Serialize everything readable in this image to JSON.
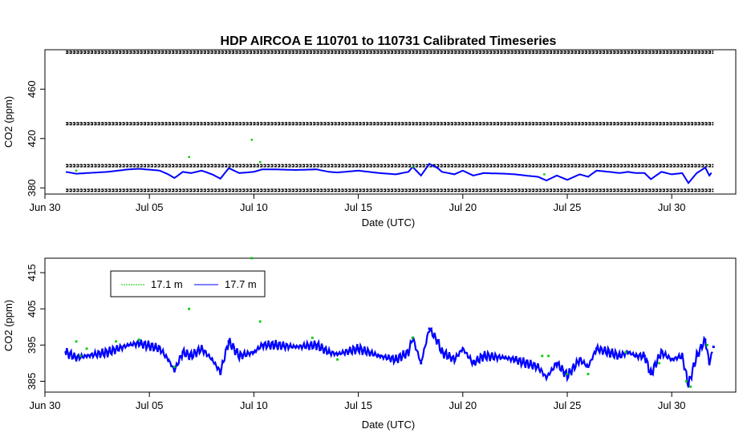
{
  "chart_data": [
    {
      "type": "scatter",
      "title": "HDP   AIRCOA  E    110701  to  110731   Calibrated Timeseries",
      "xlabel": "Date (UTC)",
      "ylabel": "CO2 (ppm)",
      "x_ticks": [
        "Jun 30",
        "Jul 05",
        "Jul 10",
        "Jul 15",
        "Jul 20",
        "Jul 25",
        "Jul 30"
      ],
      "y_ticks": [
        "380",
        "420",
        "460"
      ],
      "ylim": [
        375,
        492
      ],
      "reference_lines": [
        {
          "name": "",
          "value": 490,
          "style": "circles"
        },
        {
          "name": "",
          "value": 432,
          "style": "circles"
        },
        {
          "name": "",
          "value": 398,
          "style": "circles"
        },
        {
          "name": "",
          "value": 378,
          "style": "circles"
        }
      ],
      "series": [
        {
          "name": "17.1 m",
          "color": "#00cc00",
          "points": [
            [
              1.5,
              394
            ],
            [
              6.9,
              405
            ],
            [
              9.9,
              419
            ],
            [
              10.3,
              401
            ],
            [
              17.6,
              397
            ],
            [
              23.9,
              391
            ]
          ]
        },
        {
          "name": "17.7 m",
          "color": "#0000ff",
          "approx_range": [
            386,
            400
          ]
        }
      ]
    },
    {
      "type": "line",
      "title": "",
      "xlabel": "Date (UTC)",
      "ylabel": "CO2 (ppm)",
      "x_ticks": [
        "Jun 30",
        "Jul 05",
        "Jul 10",
        "Jul 15",
        "Jul 20",
        "Jul 25",
        "Jul 30"
      ],
      "y_ticks": [
        "385",
        "395",
        "405",
        "415"
      ],
      "ylim": [
        382,
        419
      ],
      "legend": {
        "placement": "top-left",
        "entries": [
          "17.1 m",
          "17.7 m"
        ]
      },
      "series": [
        {
          "name": "17.1 m",
          "color": "#00cc00",
          "points": [
            [
              1.5,
              396
            ],
            [
              1.7,
              392
            ],
            [
              2.0,
              394
            ],
            [
              3.4,
              396
            ],
            [
              4.5,
              396.5
            ],
            [
              6.2,
              389
            ],
            [
              6.9,
              405
            ],
            [
              9.9,
              419
            ],
            [
              10.3,
              401.5
            ],
            [
              12.8,
              397
            ],
            [
              14.0,
              391
            ],
            [
              17.6,
              397
            ],
            [
              23.8,
              392
            ],
            [
              24.1,
              392
            ],
            [
              25.0,
              387
            ],
            [
              26.0,
              387
            ],
            [
              27.8,
              393
            ],
            [
              29.4,
              390
            ],
            [
              30.7,
              385
            ],
            [
              30.9,
              383.5
            ],
            [
              31.7,
              395
            ]
          ]
        },
        {
          "name": "17.7 m",
          "color": "#0000ff",
          "points": [
            [
              1.0,
              393
            ],
            [
              1.5,
              391.5
            ],
            [
              2.0,
              392
            ],
            [
              3.0,
              393
            ],
            [
              4.0,
              395
            ],
            [
              4.5,
              395.5
            ],
            [
              5.5,
              394
            ],
            [
              5.9,
              391
            ],
            [
              6.2,
              388
            ],
            [
              6.6,
              393
            ],
            [
              7.0,
              392
            ],
            [
              7.5,
              394
            ],
            [
              8.0,
              391
            ],
            [
              8.4,
              387.5
            ],
            [
              8.8,
              396
            ],
            [
              9.3,
              392
            ],
            [
              10.0,
              393
            ],
            [
              10.4,
              395
            ],
            [
              11.0,
              395
            ],
            [
              12.0,
              394.5
            ],
            [
              13.0,
              395
            ],
            [
              13.6,
              393
            ],
            [
              14.0,
              392.5
            ],
            [
              15.0,
              394
            ],
            [
              16.0,
              392
            ],
            [
              16.8,
              391
            ],
            [
              17.4,
              393
            ],
            [
              17.6,
              397
            ],
            [
              18.0,
              390
            ],
            [
              18.4,
              399.5
            ],
            [
              18.8,
              396
            ],
            [
              19.0,
              393
            ],
            [
              19.6,
              391
            ],
            [
              20.0,
              394
            ],
            [
              20.5,
              390
            ],
            [
              21.0,
              392
            ],
            [
              22.0,
              391.5
            ],
            [
              22.5,
              391
            ],
            [
              23.0,
              390
            ],
            [
              23.6,
              389
            ],
            [
              24.0,
              386
            ],
            [
              24.5,
              390
            ],
            [
              25.0,
              386.5
            ],
            [
              25.6,
              391
            ],
            [
              26.0,
              389
            ],
            [
              26.4,
              394
            ],
            [
              27.0,
              393
            ],
            [
              27.5,
              392
            ],
            [
              27.9,
              393
            ],
            [
              28.3,
              392
            ],
            [
              28.7,
              392
            ],
            [
              29.0,
              387
            ],
            [
              29.5,
              393
            ],
            [
              30.0,
              391
            ],
            [
              30.5,
              392
            ],
            [
              30.8,
              384
            ],
            [
              31.2,
              392
            ],
            [
              31.6,
              396.5
            ],
            [
              31.8,
              390
            ],
            [
              32.0,
              394.5
            ]
          ]
        }
      ]
    }
  ]
}
